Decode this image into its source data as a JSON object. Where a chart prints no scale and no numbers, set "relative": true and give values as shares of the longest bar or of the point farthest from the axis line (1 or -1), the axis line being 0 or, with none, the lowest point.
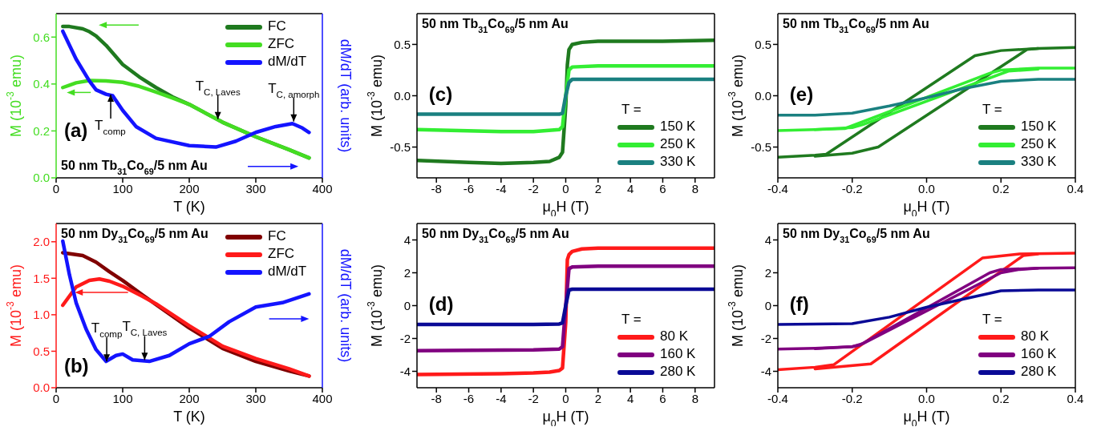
{
  "chart_data": [
    {
      "type": "line",
      "title": "50 nm Tb$_{31}$Co$_{69}$/5 nm Au",
      "xlabel": "T (K)",
      "ylabel": "M (10$^{-3}$ emu)",
      "xlim": [
        0,
        400
      ],
      "xticks": [
        0,
        100,
        200,
        300,
        400
      ],
      "ylim": [
        0,
        0.7
      ],
      "yticks": [
        {
          "value": 0,
          "label": "0.0"
        },
        0.2,
        0.4,
        0.6
      ],
      "legend": "top right",
      "annotations": [
        "(a)",
        "T$_{comp}$",
        {
          "text": "T$_{C, Laves}$",
          "x": 243,
          "y": 0.25
        },
        "T$_{C, amorph}$"
      ],
      "series": [
        {
          "name": "FC",
          "color": "#1f7a1f",
          "x": [
            10,
            20,
            40,
            50,
            60,
            75,
            100,
            125,
            150,
            175,
            200,
            250,
            300,
            350,
            380
          ],
          "values": [
            0.645,
            0.645,
            0.635,
            0.623,
            0.605,
            0.565,
            0.483,
            0.43,
            0.385,
            0.345,
            0.313,
            0.237,
            0.175,
            0.12,
            0.085
          ]
        },
        {
          "name": "ZFC",
          "color": "#44dd22",
          "x": [
            10,
            20,
            30,
            50,
            75,
            100,
            125,
            150,
            175,
            200,
            250,
            300,
            350,
            380
          ],
          "values": [
            0.385,
            0.395,
            0.405,
            0.415,
            0.413,
            0.407,
            0.39,
            0.366,
            0.34,
            0.313,
            0.237,
            0.175,
            0.12,
            0.085
          ]
        }
      ]
    },
    {
      "type": "line",
      "relative": true,
      "ylabel": "dM/dT (arb. units)",
      "xlim": [
        0,
        400
      ],
      "tick_labels": false,
      "series": [
        {
          "name": "dM/dT",
          "color": "#1414ff",
          "x": [
            10,
            30,
            50,
            60,
            75,
            85,
            100,
            120,
            150,
            200,
            240,
            270,
            300,
            330,
            355,
            370,
            380
          ],
          "values": [
            1,
            0.81,
            0.66,
            0.6,
            0.57,
            0.56,
            0.46,
            0.35,
            0.27,
            0.22,
            0.21,
            0.25,
            0.31,
            0.35,
            0.37,
            0.34,
            0.31
          ]
        }
      ]
    },
    {
      "type": "line",
      "title": "50 nm Tb$_{31}$Co$_{69}$/5 nm Au",
      "xlabel": "μ$_{0}$H (T)",
      "ylabel": "M (10$^{-3}$ emu)",
      "xlim": [
        -9.2,
        9.2
      ],
      "xticks": [
        -8,
        -6,
        -4,
        -2,
        0,
        2,
        4,
        6,
        8
      ],
      "ylim": [
        -0.8,
        0.8
      ],
      "yticks": [
        -0.5,
        {
          "value": 0,
          "label": "0.0"
        },
        0.5
      ],
      "legend": "bottom right",
      "legend_title": "T =",
      "annotations": [
        "(c)"
      ],
      "series": [
        {
          "name": "150 K",
          "color": "#1f7a1f",
          "x": [
            -9.2,
            -6,
            -4,
            -2,
            -1,
            -0.4,
            -0.2,
            0,
            0.1,
            0.2,
            0.4,
            1,
            2,
            4,
            6,
            9.2
          ],
          "values": [
            -0.63,
            -0.65,
            -0.66,
            -0.65,
            -0.64,
            -0.6,
            -0.55,
            -0.1,
            0.3,
            0.45,
            0.5,
            0.52,
            0.53,
            0.53,
            0.53,
            0.54
          ]
        },
        {
          "name": "250 K",
          "color": "#33ee33",
          "x": [
            -9.2,
            -4,
            -2,
            -0.4,
            -0.2,
            0,
            0.2,
            0.4,
            2,
            6,
            9.2
          ],
          "values": [
            -0.33,
            -0.35,
            -0.35,
            -0.33,
            -0.3,
            0,
            0.25,
            0.28,
            0.29,
            0.29,
            0.29
          ]
        },
        {
          "name": "330 K",
          "color": "#1a8080",
          "x": [
            -9.2,
            -4,
            -0.4,
            -0.2,
            0,
            0.2,
            0.4,
            2,
            9.2
          ],
          "values": [
            -0.18,
            -0.18,
            -0.18,
            -0.17,
            0,
            0.13,
            0.16,
            0.16,
            0.16
          ]
        }
      ]
    },
    {
      "type": "line",
      "title": "50 nm Tb$_{31}$Co$_{69}$/5 nm Au",
      "xlabel": "μ$_{0}$H (T)",
      "ylabel": "M (10$^{-3}$ emu)",
      "xlim": [
        -0.4,
        0.4
      ],
      "xticks": [
        -0.4,
        -0.2,
        {
          "value": 0,
          "label": "0.0"
        },
        0.2,
        0.4
      ],
      "ylim": [
        -0.8,
        0.8
      ],
      "yticks": [
        -0.5,
        {
          "value": 0,
          "label": "0.0"
        },
        0.5
      ],
      "legend": "bottom right",
      "legend_title": "T =",
      "annotations": [
        "(e)"
      ],
      "series": [
        {
          "name": "150 K",
          "color": "#1f7a1f",
          "x": [
            -0.4,
            -0.3,
            -0.27,
            0.13,
            0.2,
            0.3,
            0.4
          ],
          "values": [
            -0.6,
            -0.58,
            -0.57,
            0.39,
            0.44,
            0.46,
            0.47
          ]
        },
        {
          "color": "#1f7a1f",
          "x": [
            -0.3,
            -0.2,
            -0.13,
            0.27,
            0.3
          ],
          "values": [
            -0.59,
            -0.56,
            -0.5,
            0.45,
            0.46
          ]
        },
        {
          "name": "250 K",
          "color": "#33ee33",
          "x": [
            -0.4,
            -0.3,
            -0.22,
            0.17,
            0.2,
            0.3,
            0.4
          ],
          "values": [
            -0.34,
            -0.33,
            -0.32,
            0.22,
            0.25,
            0.27,
            0.27
          ]
        },
        {
          "color": "#33ee33",
          "x": [
            -0.3,
            -0.2,
            -0.17,
            0.22,
            0.3
          ],
          "values": [
            -0.33,
            -0.31,
            -0.28,
            0.24,
            0.26
          ]
        },
        {
          "name": "330 K",
          "color": "#1a8080",
          "x": [
            -0.4,
            -0.3,
            -0.2,
            -0.1,
            0,
            0.1,
            0.2,
            0.3,
            0.4
          ],
          "values": [
            -0.19,
            -0.19,
            -0.17,
            -0.1,
            -0.02,
            0.07,
            0.14,
            0.16,
            0.16
          ]
        }
      ]
    },
    {
      "type": "line",
      "title": "50 nm Dy$_{31}$Co$_{69}$/5 nm Au",
      "xlabel": "T (K)",
      "ylabel": "M (10$^{-3}$ emu)",
      "xlim": [
        0,
        400
      ],
      "xticks": [
        0,
        100,
        200,
        300,
        400
      ],
      "ylim": [
        0,
        2.25
      ],
      "yticks": [
        {
          "value": 0,
          "label": "0.0"
        },
        0.5,
        {
          "value": 1,
          "label": "1.0"
        },
        1.5,
        {
          "value": 2,
          "label": "2.0"
        }
      ],
      "legend": "top right",
      "annotations": [
        "(b)",
        "T$_{comp}$",
        "T$_{C, Laves}$"
      ],
      "series": [
        {
          "name": "FC",
          "color": "#800000",
          "x": [
            10,
            40,
            60,
            80,
            100,
            130,
            150,
            200,
            250,
            300,
            350,
            380
          ],
          "values": [
            1.85,
            1.81,
            1.72,
            1.59,
            1.47,
            1.27,
            1.14,
            0.82,
            0.54,
            0.36,
            0.23,
            0.16
          ]
        },
        {
          "name": "ZFC",
          "color": "#ff1a1a",
          "x": [
            10,
            30,
            50,
            65,
            80,
            100,
            130,
            150,
            200,
            250,
            300,
            350,
            380
          ],
          "values": [
            1.13,
            1.38,
            1.47,
            1.49,
            1.46,
            1.39,
            1.25,
            1.15,
            0.85,
            0.57,
            0.4,
            0.26,
            0.16
          ]
        }
      ]
    },
    {
      "type": "line",
      "relative": true,
      "ylabel": "dM/dT (arb. units)",
      "xlim": [
        0,
        400
      ],
      "tick_labels": false,
      "series": [
        {
          "name": "dM/dT",
          "color": "#1414ff",
          "x": [
            10,
            20,
            30,
            45,
            60,
            75,
            90,
            100,
            115,
            140,
            170,
            200,
            230,
            260,
            300,
            340,
            380
          ],
          "values": [
            1,
            0.77,
            0.58,
            0.4,
            0.26,
            0.18,
            0.22,
            0.23,
            0.19,
            0.18,
            0.22,
            0.3,
            0.35,
            0.45,
            0.55,
            0.58,
            0.64
          ]
        }
      ]
    },
    {
      "type": "line",
      "title": "50 nm Dy$_{31}$Co$_{69}$/5 nm Au",
      "xlabel": "μ$_{0}$H (T)",
      "ylabel": "M (10$^{-3}$ emu)",
      "xlim": [
        -9.2,
        9.2
      ],
      "xticks": [
        -8,
        -6,
        -4,
        -2,
        0,
        2,
        4,
        6,
        8
      ],
      "ylim": [
        -5,
        5
      ],
      "yticks": [
        -4,
        -2,
        0,
        2,
        4
      ],
      "legend": "bottom right",
      "legend_title": "T =",
      "annotations": [
        "(d)"
      ],
      "series": [
        {
          "name": "80 K",
          "color": "#ff1a1a",
          "x": [
            -9.2,
            -4,
            -2,
            -1,
            -0.4,
            -0.2,
            0,
            0.1,
            0.2,
            0.4,
            1,
            2,
            9.2
          ],
          "values": [
            -4.2,
            -4.15,
            -4.1,
            -4.05,
            -3.95,
            -3.8,
            -1,
            2.8,
            3.1,
            3.3,
            3.45,
            3.5,
            3.5
          ]
        },
        {
          "name": "160 K",
          "color": "#800080",
          "x": [
            -9.2,
            -2,
            -0.4,
            -0.2,
            0,
            0.2,
            0.4,
            2,
            9.2
          ],
          "values": [
            -2.75,
            -2.7,
            -2.65,
            -2.5,
            0,
            2.25,
            2.35,
            2.4,
            2.4
          ]
        },
        {
          "name": "280 K",
          "color": "#0a0a96",
          "x": [
            -9.2,
            -2,
            -0.4,
            -0.2,
            0,
            0.2,
            0.4,
            2,
            9.2
          ],
          "values": [
            -1.15,
            -1.15,
            -1.12,
            -1.05,
            0,
            0.95,
            1,
            1,
            1
          ]
        }
      ]
    },
    {
      "type": "line",
      "title": "50 nm Dy$_{31}$Co$_{69}$/5 nm Au",
      "xlabel": "μ$_{0}$H (T)",
      "ylabel": "M (10$^{-3}$ emu)",
      "xlim": [
        -0.4,
        0.4
      ],
      "xticks": [
        -0.4,
        -0.2,
        {
          "value": 0,
          "label": "0.0"
        },
        0.2,
        0.4
      ],
      "ylim": [
        -5,
        5
      ],
      "yticks": [
        -4,
        -2,
        0,
        2,
        4
      ],
      "legend": "bottom right",
      "legend_title": "T =",
      "annotations": [
        "(f)"
      ],
      "series": [
        {
          "name": "80 K",
          "color": "#ff1a1a",
          "x": [
            -0.4,
            -0.3,
            -0.25,
            0.15,
            0.25,
            0.4
          ],
          "values": [
            -3.9,
            -3.75,
            -3.6,
            2.9,
            3.15,
            3.2
          ]
        },
        {
          "color": "#ff1a1a",
          "x": [
            -0.3,
            -0.15,
            0.26,
            0.3
          ],
          "values": [
            -3.85,
            -3.55,
            3.05,
            3.15
          ]
        },
        {
          "name": "160 K",
          "color": "#800080",
          "x": [
            -0.4,
            -0.3,
            -0.2,
            -0.18,
            0.17,
            0.2,
            0.3,
            0.4
          ],
          "values": [
            -2.65,
            -2.6,
            -2.5,
            -2.4,
            2.0,
            2.2,
            2.28,
            2.3
          ]
        },
        {
          "color": "#800080",
          "x": [
            -0.3,
            -0.2,
            -0.17,
            0.2,
            0.25,
            0.3
          ],
          "values": [
            -2.62,
            -2.5,
            -2.3,
            2.0,
            2.2,
            2.28
          ]
        },
        {
          "name": "280 K",
          "color": "#0a0a96",
          "x": [
            -0.4,
            -0.3,
            -0.2,
            -0.1,
            0,
            0.1,
            0.2,
            0.3,
            0.4
          ],
          "values": [
            -1.15,
            -1.12,
            -1.1,
            -0.7,
            -0.1,
            0.4,
            0.9,
            0.95,
            0.95
          ]
        }
      ]
    }
  ]
}
